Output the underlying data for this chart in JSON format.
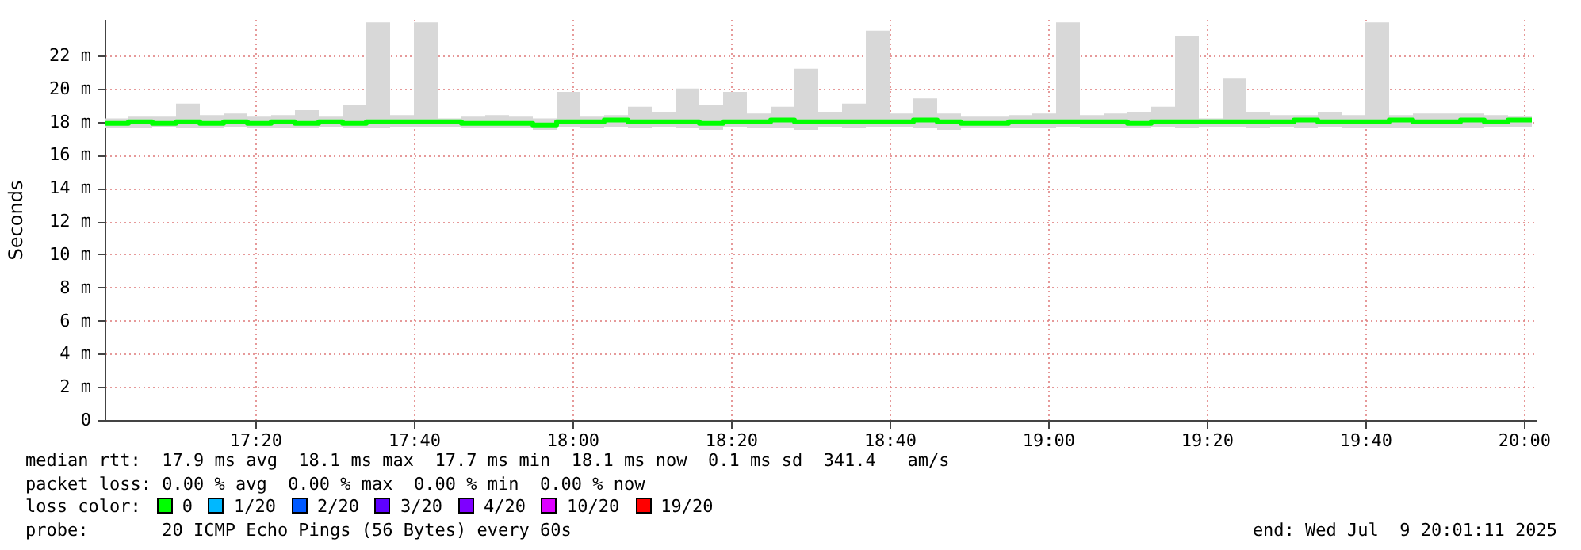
{
  "chart_data": {
    "type": "step",
    "ylabel": "Seconds",
    "xlim": [
      17.0167,
      20.0267
    ],
    "xticks": [
      {
        "value": 17.3333,
        "label": "17:20"
      },
      {
        "value": 17.6667,
        "label": "17:40"
      },
      {
        "value": 18,
        "label": "18:00"
      },
      {
        "value": 18.3333,
        "label": "18:20"
      },
      {
        "value": 18.6667,
        "label": "18:40"
      },
      {
        "value": 19,
        "label": "19:00"
      },
      {
        "value": 19.3333,
        "label": "19:20"
      },
      {
        "value": 19.6667,
        "label": "19:40"
      },
      {
        "value": 20,
        "label": "20:00"
      }
    ],
    "ylim": [
      0,
      24.2
    ],
    "yticks": [
      0,
      {
        "value": 2,
        "label": "2 m"
      },
      {
        "value": 4,
        "label": "4 m"
      },
      {
        "value": 6,
        "label": "6 m"
      },
      {
        "value": 8,
        "label": "8 m"
      },
      {
        "value": 10,
        "label": "10 m"
      },
      {
        "value": 12,
        "label": "12 m"
      },
      {
        "value": 14,
        "label": "14 m"
      },
      {
        "value": 16,
        "label": "16 m"
      },
      {
        "value": 18,
        "label": "18 m"
      },
      {
        "value": 20,
        "label": "20 m"
      },
      {
        "value": 22,
        "label": "22 m"
      }
    ],
    "grid": true,
    "x": [
      17.0167,
      17.0667,
      17.1167,
      17.1667,
      17.2167,
      17.2667,
      17.3167,
      17.3667,
      17.4167,
      17.4667,
      17.5167,
      17.5667,
      17.6167,
      17.6667,
      17.7167,
      17.7667,
      17.8167,
      17.8667,
      17.9167,
      17.9667,
      18.0167,
      18.0667,
      18.1167,
      18.1667,
      18.2167,
      18.2667,
      18.3167,
      18.3667,
      18.4167,
      18.4667,
      18.5167,
      18.5667,
      18.6167,
      18.6667,
      18.7167,
      18.7667,
      18.8167,
      18.8667,
      18.9167,
      18.9667,
      19.0167,
      19.0667,
      19.1167,
      19.1667,
      19.2167,
      19.2667,
      19.3167,
      19.3667,
      19.4167,
      19.4667,
      19.5167,
      19.5667,
      19.6167,
      19.6667,
      19.7167,
      19.7667,
      19.8167,
      19.8667,
      19.9167,
      19.9667,
      20.0167
    ],
    "series": [
      {
        "color": "#00ff00",
        "values": [
          17.9,
          18.0,
          17.9,
          18.0,
          17.9,
          18.0,
          17.9,
          18.0,
          17.9,
          18.0,
          17.9,
          18.0,
          18.0,
          18.0,
          18.0,
          17.9,
          17.9,
          17.9,
          17.8,
          18.0,
          18.0,
          18.1,
          18.0,
          18.0,
          18.0,
          17.9,
          18.0,
          18.0,
          18.1,
          18.0,
          18.0,
          18.0,
          18.0,
          18.0,
          18.1,
          18.0,
          17.9,
          17.9,
          18.0,
          18.0,
          18.0,
          18.0,
          18.0,
          17.9,
          18.0,
          18.0,
          18.0,
          18.0,
          18.0,
          18.0,
          18.1,
          18.0,
          18.0,
          18.0,
          18.1,
          18.0,
          18.0,
          18.1,
          18.0,
          18.1,
          18.1
        ],
        "lower": [
          17.6,
          17.6,
          17.7,
          17.6,
          17.6,
          17.7,
          17.6,
          17.6,
          17.6,
          17.7,
          17.6,
          17.6,
          17.7,
          17.7,
          17.7,
          17.6,
          17.6,
          17.6,
          17.5,
          17.7,
          17.6,
          17.7,
          17.6,
          17.7,
          17.6,
          17.5,
          17.7,
          17.6,
          17.6,
          17.5,
          17.7,
          17.6,
          17.7,
          17.7,
          17.6,
          17.5,
          17.6,
          17.6,
          17.6,
          17.6,
          17.7,
          17.6,
          17.6,
          17.6,
          17.7,
          17.6,
          17.7,
          17.7,
          17.6,
          17.7,
          17.6,
          17.7,
          17.6,
          17.6,
          17.6,
          17.6,
          17.6,
          17.6,
          17.7,
          17.7,
          17.8
        ],
        "upper": [
          18.2,
          18.3,
          18.3,
          19.1,
          18.4,
          18.5,
          18.3,
          18.4,
          18.7,
          18.3,
          19.0,
          24.0,
          18.4,
          24.0,
          18.2,
          18.3,
          18.4,
          18.3,
          18.2,
          19.8,
          18.3,
          18.4,
          18.9,
          18.6,
          20.0,
          19.0,
          19.8,
          18.5,
          18.9,
          21.2,
          18.6,
          19.1,
          23.5,
          18.5,
          19.4,
          18.5,
          18.3,
          18.3,
          18.4,
          18.5,
          24.0,
          18.4,
          18.5,
          18.6,
          18.9,
          23.2,
          18.2,
          20.6,
          18.6,
          18.4,
          18.4,
          18.6,
          18.4,
          24.0,
          18.4,
          18.5,
          18.5,
          18.5,
          18.4,
          18.3,
          18.2
        ]
      }
    ],
    "annotations": [
      "median rtt:  17.9 ms avg  18.1 ms max  17.7 ms min  18.1 ms now  0.1 ms sd  341.4   am/s",
      "packet loss: 0.00 % avg  0.00 % max  0.00 % min  0.00 % now",
      "loss color:",
      "0",
      "1/20",
      "2/20",
      "3/20",
      "4/20",
      "10/20",
      "19/20",
      "probe:       20 ICMP Echo Pings (56 Bytes) every 60s",
      "end: Wed Jul  9 20:01:11 2025"
    ]
  }
}
